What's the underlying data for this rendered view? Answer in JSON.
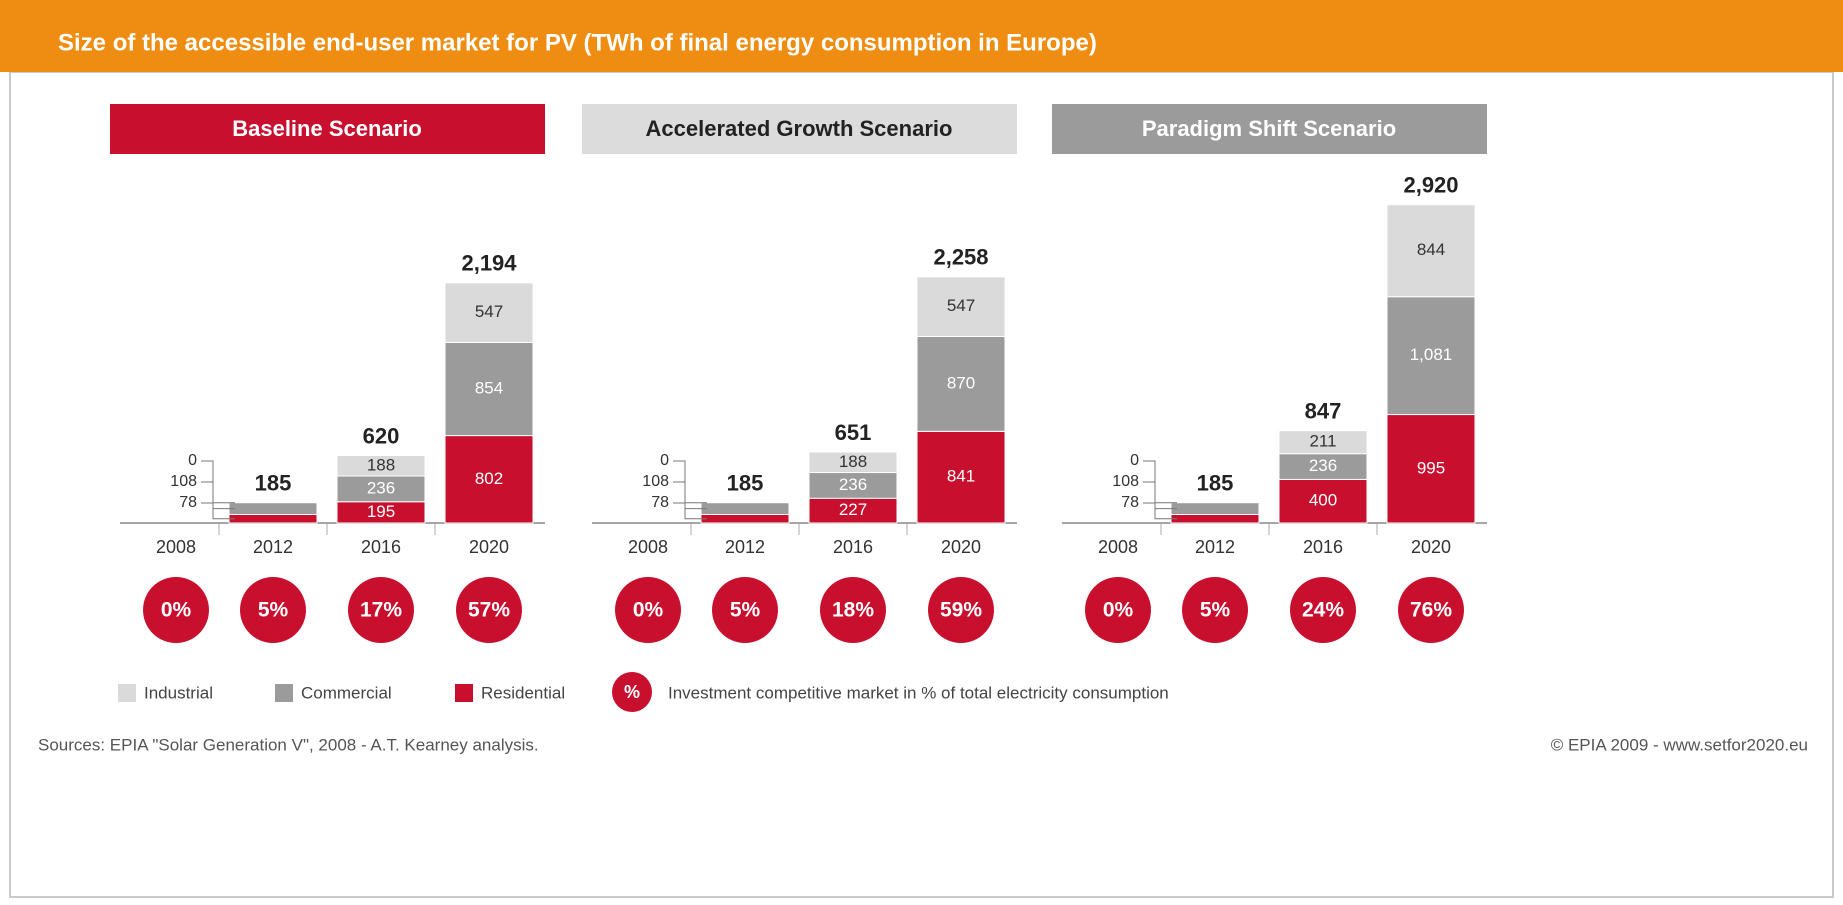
{
  "header": {
    "title": "Size of the accessible end-user market for PV (TWh of final energy consumption in Europe)"
  },
  "chart_data": [
    {
      "type": "bar",
      "stacked": true,
      "title": "Baseline Scenario",
      "categories": [
        "2008",
        "2012",
        "2016",
        "2020"
      ],
      "series": [
        {
          "name": "Residential",
          "color": "#c8102e",
          "values": [
            null,
            78,
            195,
            802
          ]
        },
        {
          "name": "Commercial",
          "color": "#9b9b9b",
          "values": [
            null,
            108,
            236,
            854
          ]
        },
        {
          "name": "Industrial",
          "color": "#dadada",
          "values": [
            null,
            0,
            188,
            547
          ]
        }
      ],
      "totals": {
        "values": [
          null,
          185,
          620,
          2194
        ],
        "value_labels": [
          null,
          "185",
          "620",
          "2,194"
        ]
      },
      "competitive_share": {
        "color": "#c8102e",
        "values": [
          0,
          5,
          17,
          57
        ],
        "value_labels": [
          "0%",
          "5%",
          "17%",
          "57%"
        ]
      }
    },
    {
      "type": "bar",
      "stacked": true,
      "title": "Accelerated Growth Scenario",
      "categories": [
        "2008",
        "2012",
        "2016",
        "2020"
      ],
      "series": [
        {
          "name": "Residential",
          "color": "#c8102e",
          "values": [
            null,
            78,
            227,
            841
          ]
        },
        {
          "name": "Commercial",
          "color": "#9b9b9b",
          "values": [
            null,
            108,
            236,
            870
          ]
        },
        {
          "name": "Industrial",
          "color": "#dadada",
          "values": [
            null,
            0,
            188,
            547
          ]
        }
      ],
      "totals": {
        "values": [
          null,
          185,
          651,
          2258
        ],
        "value_labels": [
          null,
          "185",
          "651",
          "2,258"
        ]
      },
      "competitive_share": {
        "color": "#c8102e",
        "values": [
          0,
          5,
          18,
          59
        ],
        "value_labels": [
          "0%",
          "5%",
          "18%",
          "59%"
        ]
      }
    },
    {
      "type": "bar",
      "stacked": true,
      "title": "Paradigm Shift Scenario",
      "categories": [
        "2008",
        "2012",
        "2016",
        "2020"
      ],
      "series": [
        {
          "name": "Residential",
          "color": "#c8102e",
          "values": [
            null,
            78,
            400,
            995
          ]
        },
        {
          "name": "Commercial",
          "color": "#9b9b9b",
          "values": [
            null,
            108,
            236,
            1081
          ],
          "value_labels": [
            null,
            null,
            null,
            "1,081"
          ]
        },
        {
          "name": "Industrial",
          "color": "#dadada",
          "values": [
            null,
            0,
            211,
            844
          ]
        }
      ],
      "totals": {
        "values": [
          null,
          185,
          847,
          2920
        ],
        "value_labels": [
          null,
          "185",
          "847",
          "2,920"
        ]
      },
      "competitive_share": {
        "color": "#c8102e",
        "values": [
          0,
          5,
          24,
          76
        ],
        "value_labels": [
          "0%",
          "5%",
          "24%",
          "76%"
        ]
      }
    }
  ],
  "legend": {
    "symbol": "%",
    "note": "Investment competitive market in % of total electricity consumption"
  },
  "footer": {
    "sources": "Sources: EPIA \"Solar Generation V\", 2008 - A.T. Kearney analysis.",
    "copyright": "© EPIA 2009 - www.setfor2020.eu"
  }
}
